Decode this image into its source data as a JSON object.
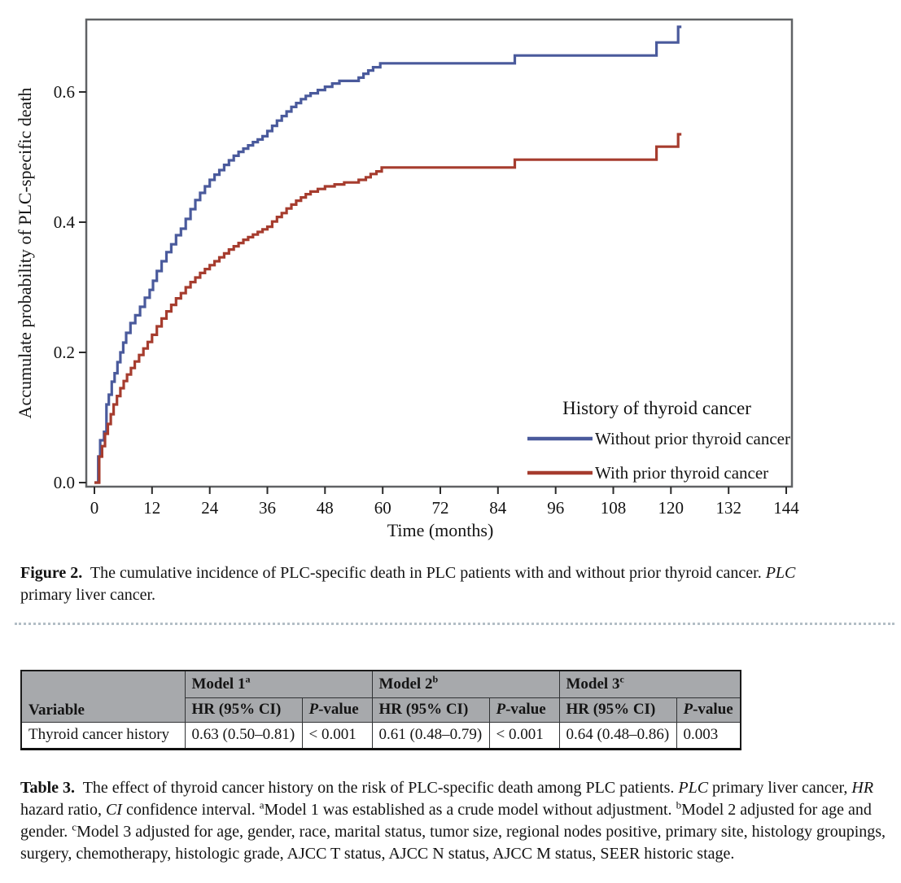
{
  "figure": {
    "caption_segments": [
      {
        "t": "Figure 2.",
        "b": true
      },
      {
        "t": "  The cumulative incidence of PLC-specific death in PLC patients with and without prior thyroid cancer. "
      },
      {
        "t": "PLC",
        "i": true
      },
      {
        "t": " primary liver cancer."
      }
    ]
  },
  "chart_data": {
    "type": "line",
    "subtype": "kaplan-meier-step",
    "title": "",
    "xlabel": "Time (months)",
    "ylabel": "Accumulate probability of PLC-specific death",
    "xlim": [
      0,
      144
    ],
    "ylim": [
      0,
      0.7125
    ],
    "xticks": [
      0,
      12,
      24,
      36,
      48,
      60,
      72,
      84,
      96,
      108,
      120,
      132,
      144
    ],
    "yticks": [
      0.0,
      0.2,
      0.4,
      0.6
    ],
    "ytick_labels": [
      "0.0",
      "0.2",
      "0.4",
      "0.6"
    ],
    "grid": false,
    "frame_color": "#606265",
    "legend": {
      "title": "History of thyroid cancer",
      "position": "inside-bottom-right"
    },
    "series": [
      {
        "name": "Without prior thyroid cancer",
        "color": "#4a5a9c",
        "points": [
          [
            0,
            0
          ],
          [
            0.8,
            0.04
          ],
          [
            1.2,
            0.065
          ],
          [
            2,
            0.078
          ],
          [
            2.5,
            0.12
          ],
          [
            3,
            0.135
          ],
          [
            3.6,
            0.155
          ],
          [
            4.2,
            0.168
          ],
          [
            4.8,
            0.185
          ],
          [
            5.4,
            0.2
          ],
          [
            6,
            0.215
          ],
          [
            6.6,
            0.23
          ],
          [
            7.5,
            0.245
          ],
          [
            8.5,
            0.257
          ],
          [
            9.5,
            0.27
          ],
          [
            10.5,
            0.284
          ],
          [
            11.5,
            0.296
          ],
          [
            12.2,
            0.31
          ],
          [
            13,
            0.325
          ],
          [
            14,
            0.34
          ],
          [
            15,
            0.354
          ],
          [
            16,
            0.366
          ],
          [
            17,
            0.38
          ],
          [
            18,
            0.39
          ],
          [
            19,
            0.405
          ],
          [
            20,
            0.42
          ],
          [
            21,
            0.434
          ],
          [
            22,
            0.445
          ],
          [
            23,
            0.455
          ],
          [
            24,
            0.465
          ],
          [
            25,
            0.473
          ],
          [
            26,
            0.48
          ],
          [
            27,
            0.488
          ],
          [
            28,
            0.495
          ],
          [
            29,
            0.502
          ],
          [
            30,
            0.508
          ],
          [
            31,
            0.513
          ],
          [
            32,
            0.518
          ],
          [
            33,
            0.523
          ],
          [
            34,
            0.527
          ],
          [
            35,
            0.532
          ],
          [
            36,
            0.54
          ],
          [
            37,
            0.548
          ],
          [
            38,
            0.556
          ],
          [
            39,
            0.563
          ],
          [
            40,
            0.57
          ],
          [
            41,
            0.577
          ],
          [
            42,
            0.583
          ],
          [
            43,
            0.589
          ],
          [
            44,
            0.594
          ],
          [
            45,
            0.598
          ],
          [
            46.5,
            0.603
          ],
          [
            48,
            0.608
          ],
          [
            49.5,
            0.613
          ],
          [
            51,
            0.617
          ],
          [
            55,
            0.622
          ],
          [
            56,
            0.628
          ],
          [
            57,
            0.633
          ],
          [
            58,
            0.638
          ],
          [
            59.5,
            0.644
          ],
          [
            87.5,
            0.656
          ],
          [
            117,
            0.676
          ],
          [
            121.5,
            0.7
          ]
        ]
      },
      {
        "name": "With prior thyroid cancer",
        "color": "#a63c2e",
        "points": [
          [
            0,
            0
          ],
          [
            1,
            0.04
          ],
          [
            1.6,
            0.056
          ],
          [
            2.2,
            0.075
          ],
          [
            2.8,
            0.09
          ],
          [
            3.4,
            0.105
          ],
          [
            4,
            0.12
          ],
          [
            4.7,
            0.133
          ],
          [
            5.4,
            0.145
          ],
          [
            6.1,
            0.156
          ],
          [
            6.8,
            0.166
          ],
          [
            7.6,
            0.176
          ],
          [
            8.4,
            0.186
          ],
          [
            9.3,
            0.196
          ],
          [
            10.2,
            0.206
          ],
          [
            11.1,
            0.216
          ],
          [
            12,
            0.227
          ],
          [
            13,
            0.24
          ],
          [
            14,
            0.252
          ],
          [
            15,
            0.263
          ],
          [
            16,
            0.273
          ],
          [
            17,
            0.283
          ],
          [
            18,
            0.291
          ],
          [
            19,
            0.3
          ],
          [
            20,
            0.308
          ],
          [
            21,
            0.315
          ],
          [
            22,
            0.322
          ],
          [
            23,
            0.328
          ],
          [
            24,
            0.334
          ],
          [
            25,
            0.34
          ],
          [
            26,
            0.346
          ],
          [
            27,
            0.352
          ],
          [
            28,
            0.358
          ],
          [
            29,
            0.363
          ],
          [
            30,
            0.368
          ],
          [
            31,
            0.373
          ],
          [
            32,
            0.377
          ],
          [
            33,
            0.381
          ],
          [
            34,
            0.385
          ],
          [
            35,
            0.389
          ],
          [
            36,
            0.393
          ],
          [
            37,
            0.401
          ],
          [
            38,
            0.408
          ],
          [
            39,
            0.414
          ],
          [
            40,
            0.421
          ],
          [
            41,
            0.427
          ],
          [
            42,
            0.433
          ],
          [
            43,
            0.438
          ],
          [
            44,
            0.443
          ],
          [
            45,
            0.447
          ],
          [
            46.5,
            0.451
          ],
          [
            48,
            0.455
          ],
          [
            50,
            0.458
          ],
          [
            52,
            0.461
          ],
          [
            55,
            0.465
          ],
          [
            56.5,
            0.469
          ],
          [
            57.5,
            0.474
          ],
          [
            58.7,
            0.478
          ],
          [
            59.8,
            0.484
          ],
          [
            87.5,
            0.496
          ],
          [
            117,
            0.516
          ],
          [
            121.5,
            0.535
          ]
        ]
      }
    ]
  },
  "table": {
    "model_headers": [
      {
        "label": "Model 1",
        "sup": "a"
      },
      {
        "label": "Model 2",
        "sup": "b"
      },
      {
        "label": "Model 3",
        "sup": "c"
      }
    ],
    "sub_headers": {
      "variable": "Variable",
      "hr": "HR (95% CI)",
      "p_segments": [
        {
          "t": "P",
          "i": true
        },
        {
          "t": "-value"
        }
      ]
    },
    "rows": [
      {
        "variable": "Thyroid cancer history",
        "cells": [
          "0.63 (0.50–0.81)",
          "< 0.001",
          "0.61 (0.48–0.79)",
          "< 0.001",
          "0.64 (0.48–0.86)",
          "0.003"
        ]
      }
    ],
    "header_bg": "#a7a9ac"
  },
  "table_caption_segments": [
    {
      "t": "Table 3.",
      "b": true
    },
    {
      "t": "  The effect of thyroid cancer history on the risk of PLC-specific death among PLC patients. "
    },
    {
      "t": "PLC",
      "i": true
    },
    {
      "t": " primary liver cancer, "
    },
    {
      "t": "HR",
      "i": true
    },
    {
      "t": " hazard ratio, "
    },
    {
      "t": "CI",
      "i": true
    },
    {
      "t": " confidence interval. "
    },
    {
      "t": "a",
      "sup": true
    },
    {
      "t": "Model 1 was established as a crude model without adjustment. "
    },
    {
      "t": "b",
      "sup": true
    },
    {
      "t": "Model 2 adjusted for age and gender. "
    },
    {
      "t": "c",
      "sup": true
    },
    {
      "t": "Model 3 adjusted for age, gender, race, marital status, tumor size, regional nodes positive, primary site, histology groupings, surgery, chemotherapy, histologic grade, AJCC T status, AJCC N status, AJCC M status, SEER historic stage."
    }
  ]
}
